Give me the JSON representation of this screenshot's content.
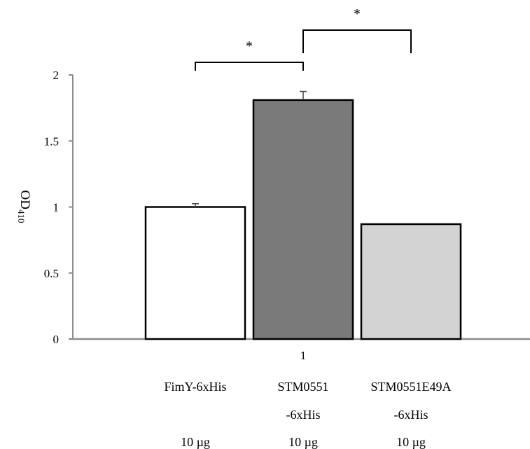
{
  "chart_data": {
    "type": "bar",
    "ylabel": "OD",
    "ylabel_sub": "410",
    "ylim": [
      0,
      2
    ],
    "yticks": [
      {
        "v": 0,
        "label": "0"
      },
      {
        "v": 0.5,
        "label": "0.5"
      },
      {
        "v": 1,
        "label": "1"
      },
      {
        "v": 1.5,
        "label": "1.5"
      },
      {
        "v": 2,
        "label": "2"
      }
    ],
    "x_category": "1",
    "bars": [
      {
        "name": "FimY-6xHis",
        "label_lines": [
          "FimY-6xHis",
          "",
          "10 µg"
        ],
        "value": 1.0,
        "error": 0.025,
        "color": "#ffffff"
      },
      {
        "name": "STM0551-6xHis",
        "label_lines": [
          "STM0551",
          "-6xHis",
          "10 µg"
        ],
        "value": 1.81,
        "error": 0.065,
        "color": "#7a7a7a"
      },
      {
        "name": "STM0551E49A-6xHis",
        "label_lines": [
          "STM0551E49A",
          "-6xHis",
          "10 µg"
        ],
        "value": 0.87,
        "error": 0,
        "color": "#d3d3d3"
      }
    ],
    "significance": [
      {
        "from": 0,
        "to": 1,
        "label": "*"
      },
      {
        "from": 1,
        "to": 2,
        "label": "*"
      }
    ],
    "grid": false,
    "legend": "none"
  }
}
